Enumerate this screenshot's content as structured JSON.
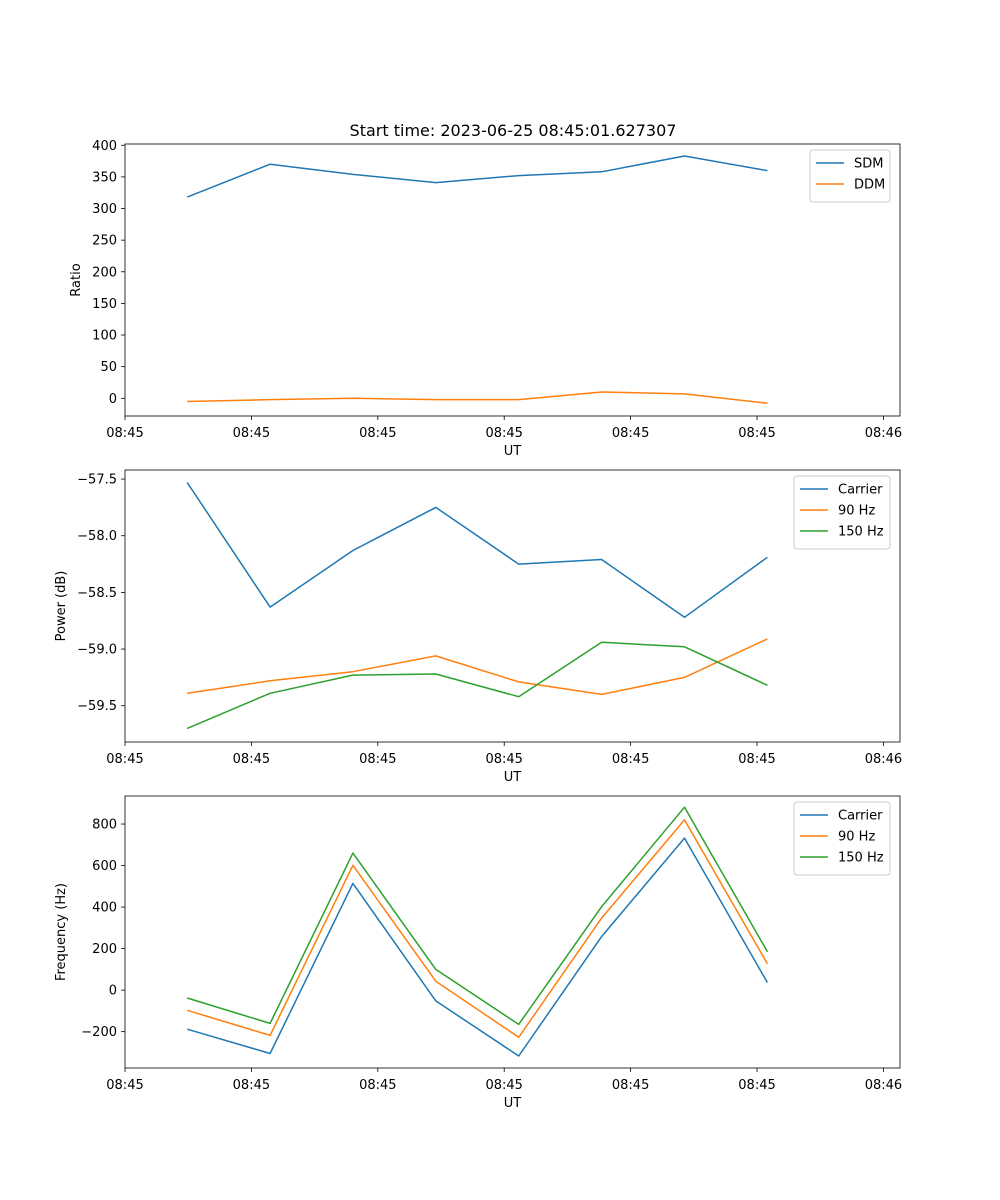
{
  "figure": {
    "title": "Start time: 2023-06-25 08:45:01.627307"
  },
  "chart_data": [
    {
      "type": "line",
      "title": "Start time: 2023-06-25 08:45:01.627307",
      "xlabel": "UT",
      "ylabel": "Ratio",
      "x": [
        0,
        1,
        2,
        3,
        4,
        5,
        6,
        7
      ],
      "xlim": [
        -0.75,
        8.6
      ],
      "ylim": [
        -28,
        402
      ],
      "xticks": [
        -0.75,
        0.775,
        2.3,
        3.825,
        5.35,
        6.875,
        8.4
      ],
      "xtick_labels": [
        "08:45",
        "08:45",
        "08:45",
        "08:45",
        "08:45",
        "08:45",
        "08:46"
      ],
      "yticks": [
        0,
        50,
        100,
        150,
        200,
        250,
        300,
        350,
        400
      ],
      "ytick_labels": [
        "0",
        "50",
        "100",
        "150",
        "200",
        "250",
        "300",
        "350",
        "400"
      ],
      "grid": false,
      "legend": "top-right",
      "series": [
        {
          "name": "SDM",
          "color": "#1f77b4",
          "values": [
            318,
            370,
            354,
            341,
            352,
            358,
            383,
            360
          ]
        },
        {
          "name": "DDM",
          "color": "#ff7f0e",
          "values": [
            -5,
            -2,
            0,
            -2,
            -2,
            10,
            7,
            -8
          ]
        }
      ]
    },
    {
      "type": "line",
      "xlabel": "UT",
      "ylabel": "Power (dB)",
      "x": [
        0,
        1,
        2,
        3,
        4,
        5,
        6,
        7
      ],
      "xlim": [
        -0.75,
        8.6
      ],
      "ylim": [
        -59.82,
        -57.42
      ],
      "xticks": [
        -0.75,
        0.775,
        2.3,
        3.825,
        5.35,
        6.875,
        8.4
      ],
      "xtick_labels": [
        "08:45",
        "08:45",
        "08:45",
        "08:45",
        "08:45",
        "08:45",
        "08:46"
      ],
      "yticks": [
        -57.5,
        -58.0,
        -58.5,
        -59.0,
        -59.5
      ],
      "ytick_labels": [
        "−57.5",
        "−58.0",
        "−58.5",
        "−59.0",
        "−59.5"
      ],
      "grid": false,
      "legend": "top-right",
      "series": [
        {
          "name": "Carrier",
          "color": "#1f77b4",
          "values": [
            -57.53,
            -58.63,
            -58.13,
            -57.75,
            -58.25,
            -58.21,
            -58.72,
            -58.19
          ]
        },
        {
          "name": "90 Hz",
          "color": "#ff7f0e",
          "values": [
            -59.39,
            -59.28,
            -59.2,
            -59.06,
            -59.29,
            -59.4,
            -59.25,
            -58.91
          ]
        },
        {
          "name": "150 Hz",
          "color": "#2ca02c",
          "values": [
            -59.7,
            -59.39,
            -59.23,
            -59.22,
            -59.42,
            -58.94,
            -58.98,
            -59.32
          ]
        }
      ]
    },
    {
      "type": "line",
      "xlabel": "UT",
      "ylabel": "Frequency (Hz)",
      "x": [
        0,
        1,
        2,
        3,
        4,
        5,
        6,
        7
      ],
      "xlim": [
        -0.75,
        8.6
      ],
      "ylim": [
        -375,
        935
      ],
      "xticks": [
        -0.75,
        0.775,
        2.3,
        3.825,
        5.35,
        6.875,
        8.4
      ],
      "xtick_labels": [
        "08:45",
        "08:45",
        "08:45",
        "08:45",
        "08:45",
        "08:45",
        "08:46"
      ],
      "yticks": [
        -200,
        0,
        200,
        400,
        600,
        800
      ],
      "ytick_labels": [
        "−200",
        "0",
        "200",
        "400",
        "600",
        "800"
      ],
      "grid": false,
      "legend": "top-right",
      "series": [
        {
          "name": "Carrier",
          "color": "#1f77b4",
          "values": [
            -188,
            -305,
            514,
            -52,
            -317,
            258,
            732,
            37
          ]
        },
        {
          "name": "90 Hz",
          "color": "#ff7f0e",
          "values": [
            -97,
            -218,
            601,
            43,
            -227,
            347,
            820,
            127
          ]
        },
        {
          "name": "150 Hz",
          "color": "#2ca02c",
          "values": [
            -38,
            -160,
            660,
            100,
            -165,
            402,
            881,
            185
          ]
        }
      ]
    }
  ]
}
